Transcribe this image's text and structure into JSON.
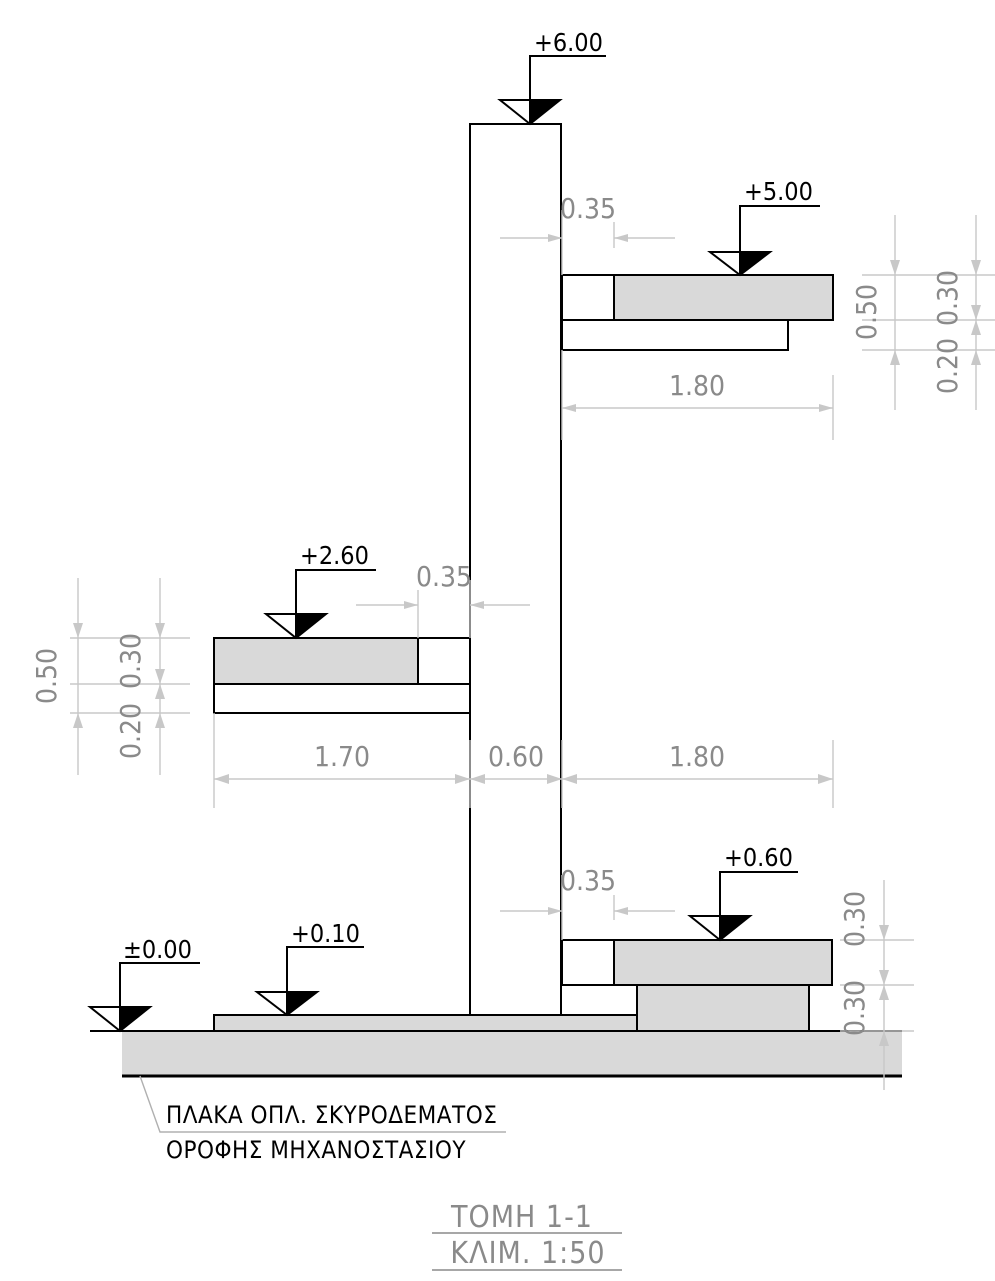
{
  "levels": {
    "top": "+6.00",
    "upper_slab": "+5.00",
    "middle_slab": "+2.60",
    "lower_slab": "+0.60",
    "floor": "+0.10",
    "ground": "±0.00"
  },
  "dimensions": {
    "upper_overhang": "0.35",
    "upper_width": "1.80",
    "upper_total": "0.50",
    "upper_top": "0.30",
    "upper_bottom": "0.20",
    "middle_overhang": "0.35",
    "middle_total": "0.50",
    "middle_top": "0.30",
    "middle_bottom": "0.20",
    "left_width": "1.70",
    "wall_width": "0.60",
    "right_width": "1.80",
    "lower_overhang": "0.35",
    "lower_top": "0.30",
    "lower_bottom": "0.30"
  },
  "note": {
    "line1": "ΠΛΑΚΑ ΟΠΛ. ΣΚΥΡΟΔΕΜΑΤΟΣ",
    "line2": "ΟΡΟΦΗΣ ΜΗΧΑΝΟΣΤΑΣΙΟΥ"
  },
  "title": {
    "section": "ΤΟΜΗ 1-1",
    "scale": "ΚΛΙΜ. 1:50"
  }
}
